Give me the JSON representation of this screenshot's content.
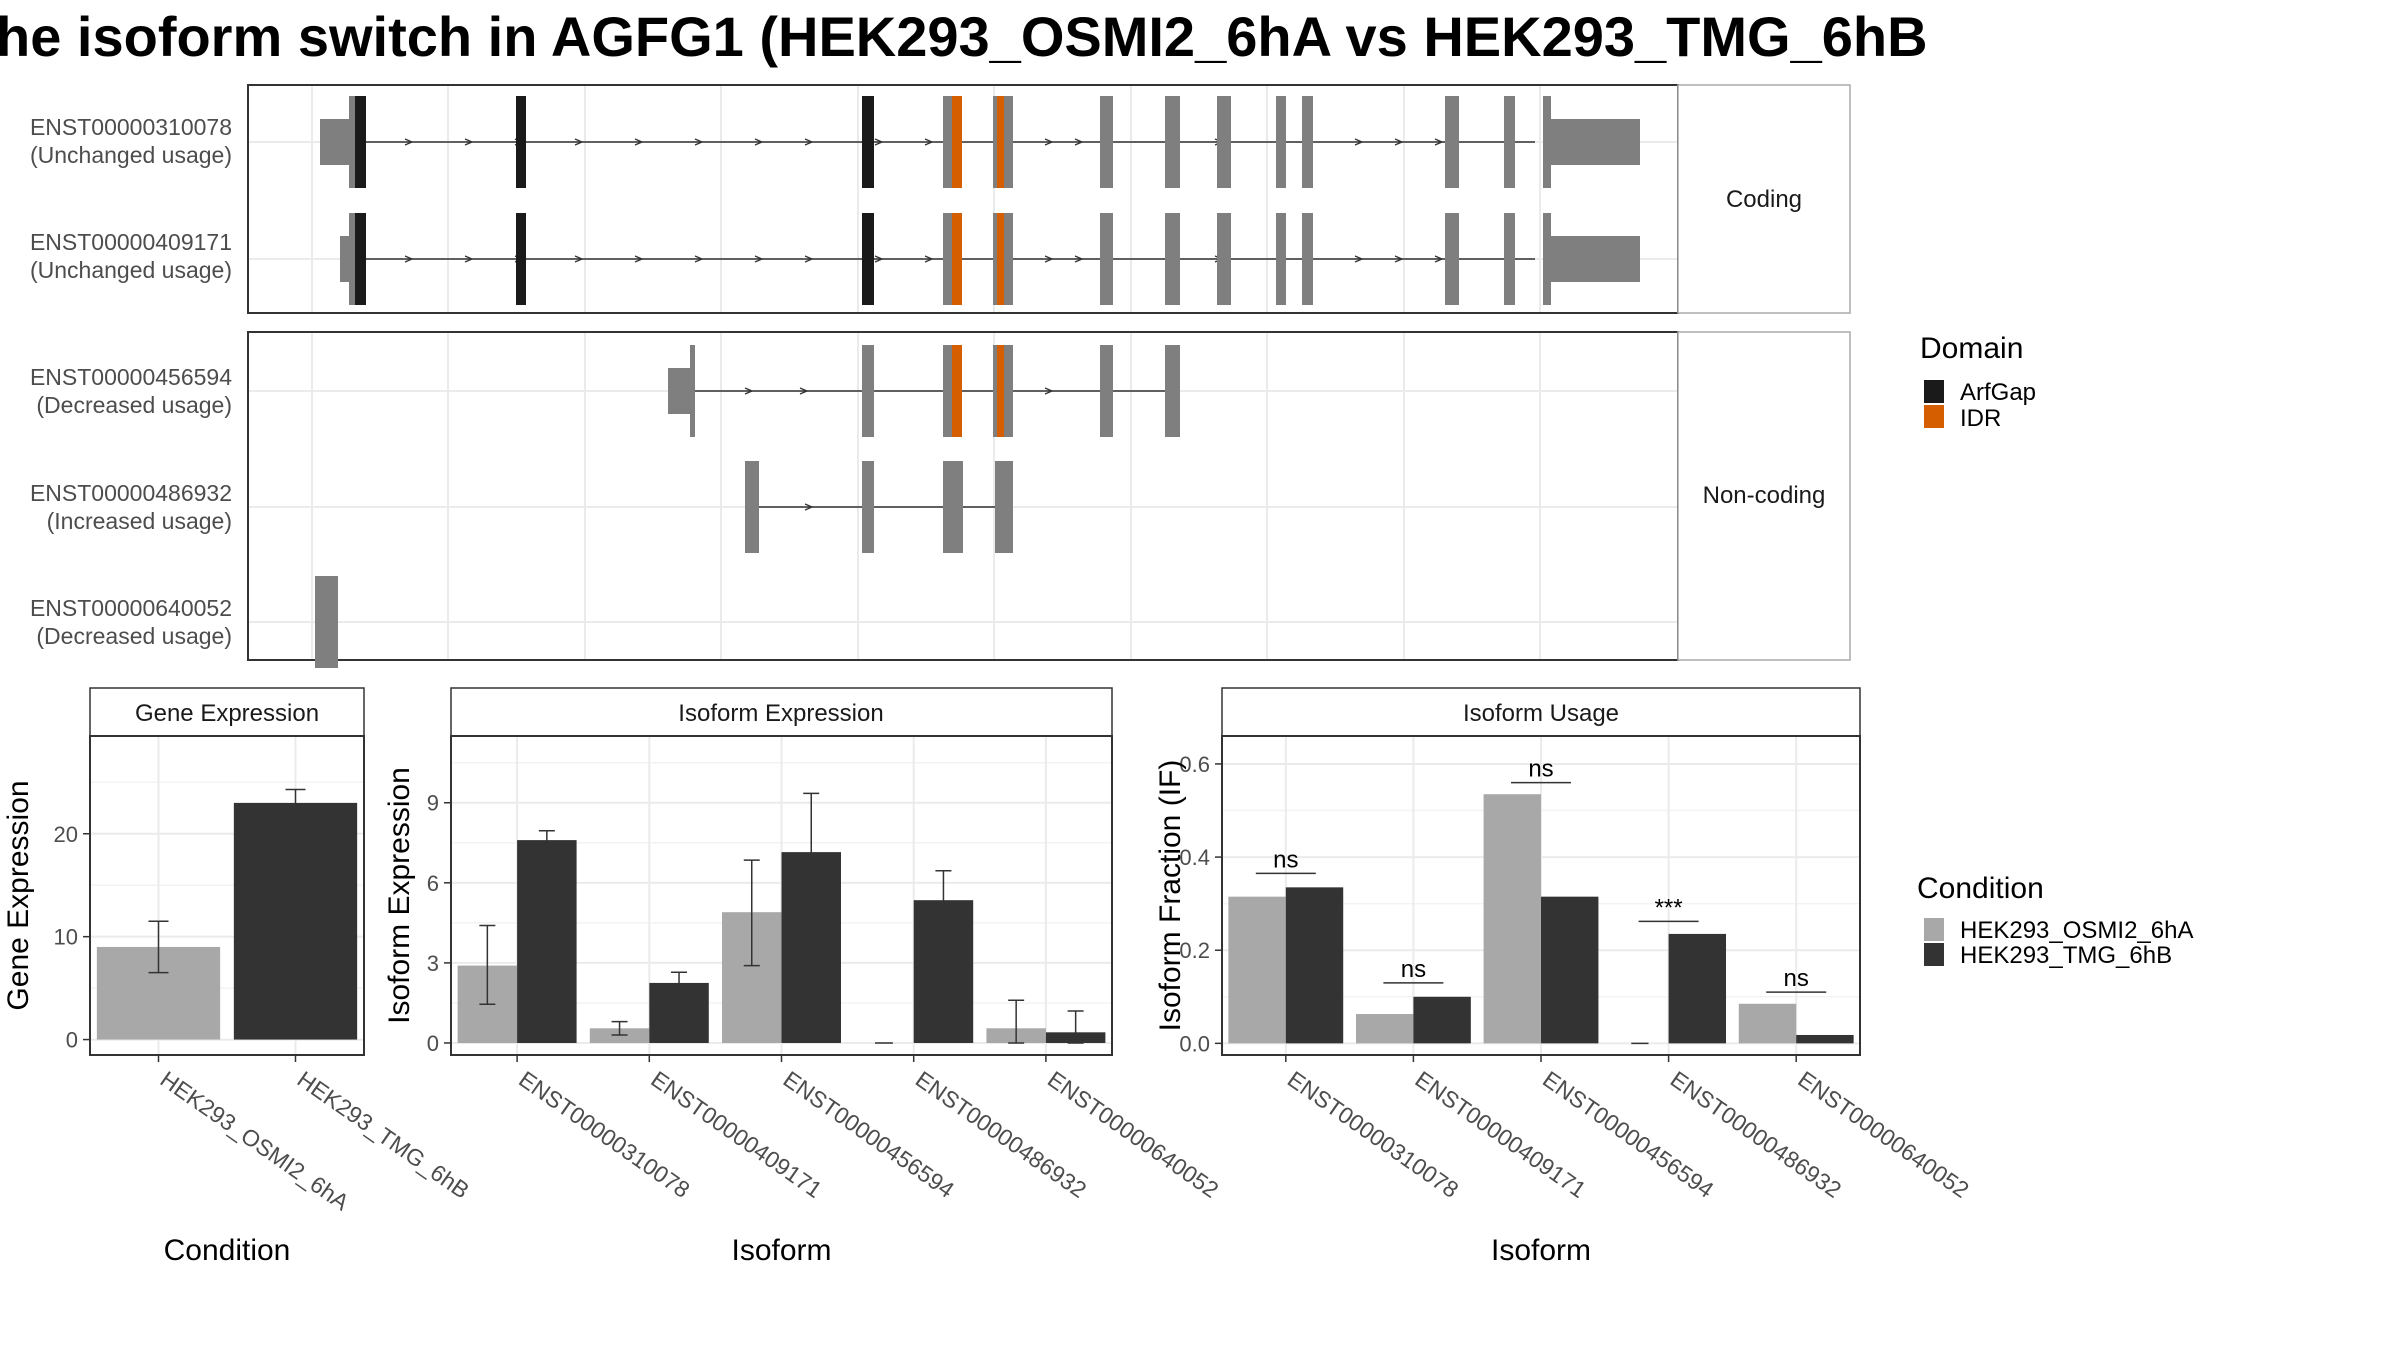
{
  "title": "he isoform switch in AGFG1 (HEK293_OSMI2_6hA vs HEK293_TMG_6hB",
  "colors": {
    "arfgap": "#1a1a1a",
    "idr": "#d55e00",
    "exon": "#7f7f7f",
    "cond_a": "#a8a8a8",
    "cond_b": "#333333",
    "grid": "#ebebeb",
    "strip_bg": "#ffffff"
  },
  "structure": {
    "coding_strip": "Coding",
    "noncoding_strip": "Non-coding",
    "isoforms": [
      {
        "id": "ENST00000310078",
        "usage": "(Unchanged usage)",
        "group": "coding"
      },
      {
        "id": "ENST00000409171",
        "usage": "(Unchanged usage)",
        "group": "coding"
      },
      {
        "id": "ENST00000456594",
        "usage": "(Decreased usage)",
        "group": "noncoding"
      },
      {
        "id": "ENST00000486932",
        "usage": "(Increased usage)",
        "group": "noncoding"
      },
      {
        "id": "ENST00000640052",
        "usage": "(Decreased usage)",
        "group": "noncoding"
      }
    ]
  },
  "legend_domain": {
    "title": "Domain",
    "items": [
      "ArfGap",
      "IDR"
    ]
  },
  "legend_condition": {
    "title": "Condition",
    "items": [
      "HEK293_OSMI2_6hA",
      "HEK293_TMG_6hB"
    ]
  },
  "chart_data": [
    {
      "type": "bar",
      "title": "Gene Expression",
      "xlabel": "Condition",
      "ylabel": "Gene Expression",
      "categories": [
        "HEK293_OSMI2_6hA",
        "HEK293_TMG_6hB"
      ],
      "values": [
        9,
        23
      ],
      "error_low": [
        6.5,
        22.1
      ],
      "error_high": [
        11.5,
        24.3
      ],
      "yticks": [
        0,
        10,
        20
      ],
      "ylim": [
        -1.5,
        29.5
      ]
    },
    {
      "type": "bar",
      "title": "Isoform Expression",
      "xlabel": "Isoform",
      "ylabel": "Isoform Expression",
      "categories": [
        "ENST00000310078",
        "ENST00000409171",
        "ENST00000456594",
        "ENST00000486932",
        "ENST00000640052"
      ],
      "series": [
        {
          "name": "HEK293_OSMI2_6hA",
          "values": [
            2.9,
            0.55,
            4.9,
            0.0,
            0.55
          ],
          "error_low": [
            1.45,
            0.3,
            2.9,
            0.0,
            0.0
          ],
          "error_high": [
            4.4,
            0.8,
            6.85,
            0.0,
            1.6
          ]
        },
        {
          "name": "HEK293_TMG_6hB",
          "values": [
            7.6,
            2.25,
            7.15,
            5.35,
            0.4
          ],
          "error_low": [
            7.3,
            1.95,
            5.0,
            4.3,
            0.0
          ],
          "error_high": [
            7.95,
            2.65,
            9.35,
            6.45,
            1.2
          ]
        }
      ],
      "yticks": [
        0,
        3,
        6,
        9
      ],
      "ylim": [
        -0.45,
        11.5
      ]
    },
    {
      "type": "bar",
      "title": "Isoform Usage",
      "xlabel": "Isoform",
      "ylabel": "Isoform Fraction (IF)",
      "categories": [
        "ENST00000310078",
        "ENST00000409171",
        "ENST00000456594",
        "ENST00000486932",
        "ENST00000640052"
      ],
      "series": [
        {
          "name": "HEK293_OSMI2_6hA",
          "values": [
            0.315,
            0.063,
            0.535,
            0.0,
            0.085
          ]
        },
        {
          "name": "HEK293_TMG_6hB",
          "values": [
            0.335,
            0.1,
            0.315,
            0.235,
            0.018
          ]
        }
      ],
      "significance": [
        "ns",
        "ns",
        "ns",
        "***",
        "ns"
      ],
      "sig_level": [
        0.365,
        0.13,
        0.56,
        0.262,
        0.11
      ],
      "yticks": [
        0.0,
        0.2,
        0.4,
        0.6
      ],
      "ylim": [
        -0.025,
        0.66
      ]
    }
  ]
}
